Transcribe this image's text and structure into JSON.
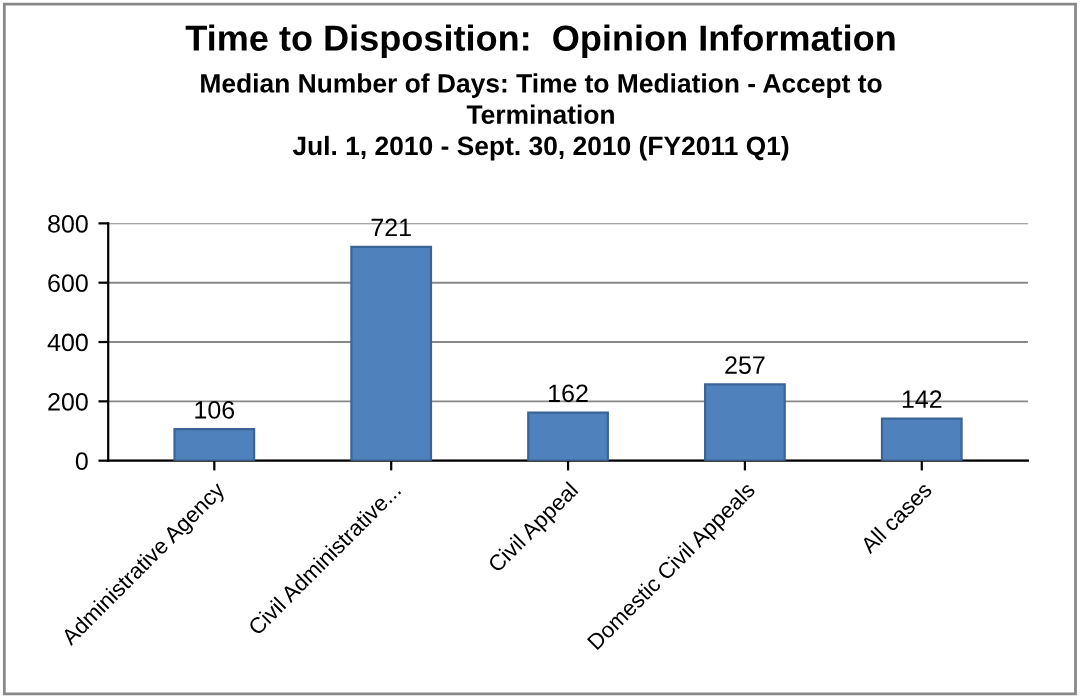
{
  "chart_data": {
    "type": "bar",
    "title": "Time to Disposition:  Opinion Information",
    "subtitle": "Median Number of Days: Time to Mediation - Accept to\nTermination\nJul. 1, 2010 - Sept. 30, 2010 (FY2011 Q1)",
    "categories": [
      "Administrative Agency",
      "Civil Administrative...",
      "Civil Appeal",
      "Domestic Civil Appeals",
      "All cases"
    ],
    "values": [
      106,
      721,
      162,
      257,
      142
    ],
    "color": "#4f81bd",
    "ylim": [
      0,
      800
    ],
    "yticks": [
      0,
      200,
      400,
      600,
      800
    ],
    "grid": "y",
    "data_labels": true
  }
}
